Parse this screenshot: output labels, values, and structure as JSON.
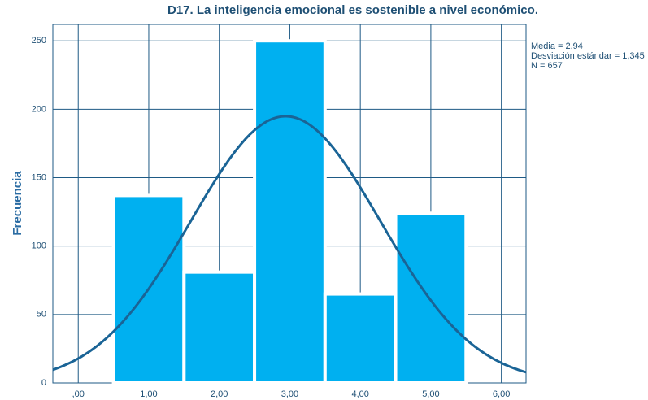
{
  "chart_data": {
    "type": "histogram",
    "title": "D17. La inteligencia emocional es sostenible a nivel económico.",
    "ylabel": "Frecuencia",
    "bins": [
      0.5,
      1.5,
      2.5,
      3.5,
      4.5,
      5.5
    ],
    "counts": [
      137,
      81,
      250,
      65,
      124
    ],
    "color": "#00b0f0",
    "curve_color": "#1a6496",
    "xlim": [
      -0.36,
      6.35
    ],
    "ylim": [
      0,
      262
    ],
    "xticks": [
      {
        "value": 0,
        "label": ",00"
      },
      {
        "value": 1,
        "label": "1,00"
      },
      {
        "value": 2,
        "label": "2,00"
      },
      {
        "value": 3,
        "label": "3,00"
      },
      {
        "value": 4,
        "label": "4,00"
      },
      {
        "value": 5,
        "label": "5,00"
      },
      {
        "value": 6,
        "label": "6,00"
      }
    ],
    "yticks": [
      0,
      50,
      100,
      150,
      200,
      250
    ],
    "grid": true,
    "stats": [
      {
        "value": 2.94,
        "label": "Media = 2,94"
      },
      {
        "value": 1.345,
        "label": "Desviación estándar = 1,345"
      },
      {
        "value": 657,
        "label": "N = 657"
      }
    ]
  }
}
